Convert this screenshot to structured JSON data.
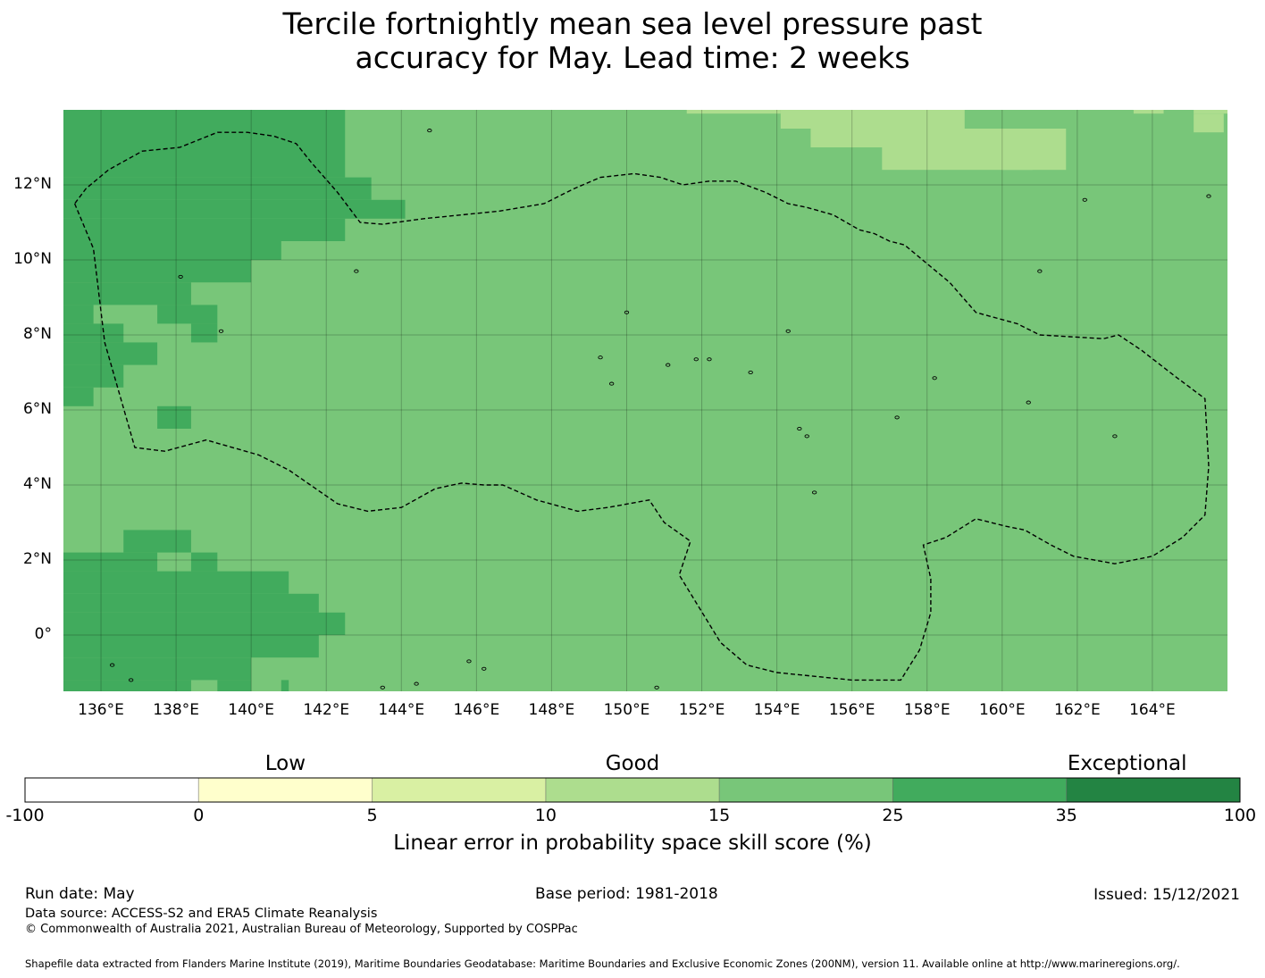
{
  "title_line1": "Tercile fortnightly mean sea level pressure past",
  "title_line2": "accuracy for May. Lead time: 2 weeks",
  "map": {
    "lon_range": [
      135.0,
      166.0
    ],
    "lat_range": [
      -1.5,
      14.0
    ],
    "x_ticks": [
      "136°E",
      "138°E",
      "140°E",
      "142°E",
      "144°E",
      "146°E",
      "148°E",
      "150°E",
      "152°E",
      "154°E",
      "156°E",
      "158°E",
      "160°E",
      "162°E",
      "164°E"
    ],
    "x_tick_values": [
      136,
      138,
      140,
      142,
      144,
      146,
      148,
      150,
      152,
      154,
      156,
      158,
      160,
      162,
      164
    ],
    "y_ticks": [
      "12°N",
      "10°N",
      "8°N",
      "6°N",
      "4°N",
      "2°N",
      "0°"
    ],
    "y_tick_values": [
      12,
      10,
      8,
      6,
      4,
      2,
      0
    ],
    "background_category": 4,
    "skill_patches": [
      {
        "category": 5,
        "lon": [
          135.0,
          142.5
        ],
        "lat": [
          13.0,
          14.0
        ]
      },
      {
        "category": 5,
        "lon": [
          135.0,
          142.5
        ],
        "lat": [
          12.2,
          13.0
        ]
      },
      {
        "category": 5,
        "lon": [
          135.0,
          143.2
        ],
        "lat": [
          11.6,
          12.2
        ]
      },
      {
        "category": 5,
        "lon": [
          135.0,
          143.2
        ],
        "lat": [
          11.6,
          11.6
        ]
      },
      {
        "category": 5,
        "lon": [
          135.0,
          144.1
        ],
        "lat": [
          11.1,
          11.6
        ]
      },
      {
        "category": 5,
        "lon": [
          135.0,
          142.5
        ],
        "lat": [
          10.5,
          11.1
        ]
      },
      {
        "category": 5,
        "lon": [
          135.0,
          140.8
        ],
        "lat": [
          10.0,
          10.5
        ]
      },
      {
        "category": 5,
        "lon": [
          135.0,
          140.0
        ],
        "lat": [
          9.4,
          10.0
        ]
      },
      {
        "category": 5,
        "lon": [
          135.0,
          138.4
        ],
        "lat": [
          8.8,
          9.4
        ]
      },
      {
        "category": 5,
        "lon": [
          135.0,
          135.8
        ],
        "lat": [
          8.3,
          8.8
        ]
      },
      {
        "category": 5,
        "lon": [
          137.5,
          139.1
        ],
        "lat": [
          8.3,
          8.8
        ]
      },
      {
        "category": 5,
        "lon": [
          138.4,
          139.1
        ],
        "lat": [
          7.8,
          8.3
        ]
      },
      {
        "category": 5,
        "lon": [
          135.0,
          136.6
        ],
        "lat": [
          7.8,
          8.3
        ]
      },
      {
        "category": 5,
        "lon": [
          135.0,
          137.5
        ],
        "lat": [
          7.2,
          7.8
        ]
      },
      {
        "category": 5,
        "lon": [
          135.0,
          136.6
        ],
        "lat": [
          6.6,
          7.2
        ]
      },
      {
        "category": 5,
        "lon": [
          135.0,
          135.8
        ],
        "lat": [
          6.1,
          6.6
        ]
      },
      {
        "category": 5,
        "lon": [
          137.5,
          138.4
        ],
        "lat": [
          5.5,
          6.1
        ]
      },
      {
        "category": 5,
        "lon": [
          136.6,
          138.4
        ],
        "lat": [
          2.2,
          2.8
        ]
      },
      {
        "category": 5,
        "lon": [
          135.0,
          137.5
        ],
        "lat": [
          1.7,
          2.2
        ]
      },
      {
        "category": 5,
        "lon": [
          138.4,
          139.1
        ],
        "lat": [
          1.7,
          2.2
        ]
      },
      {
        "category": 5,
        "lon": [
          135.0,
          141.0
        ],
        "lat": [
          1.1,
          1.7
        ]
      },
      {
        "category": 5,
        "lon": [
          135.0,
          141.8
        ],
        "lat": [
          0.6,
          1.1
        ]
      },
      {
        "category": 5,
        "lon": [
          135.0,
          142.5
        ],
        "lat": [
          0.0,
          0.6
        ]
      },
      {
        "category": 5,
        "lon": [
          135.0,
          141.8
        ],
        "lat": [
          -0.6,
          0.0
        ]
      },
      {
        "category": 5,
        "lon": [
          135.0,
          140.0
        ],
        "lat": [
          -1.2,
          -0.6
        ]
      },
      {
        "category": 5,
        "lon": [
          135.0,
          138.4
        ],
        "lat": [
          -1.5,
          -1.2
        ]
      },
      {
        "category": 5,
        "lon": [
          139.1,
          140.0
        ],
        "lat": [
          -1.5,
          -1.2
        ]
      },
      {
        "category": 5,
        "lon": [
          140.8,
          141.0
        ],
        "lat": [
          -1.5,
          -1.2
        ]
      },
      {
        "category": 3,
        "lon": [
          151.6,
          154.1
        ],
        "lat": [
          13.9,
          14.0
        ]
      },
      {
        "category": 3,
        "lon": [
          154.1,
          159.0
        ],
        "lat": [
          13.5,
          14.0
        ]
      },
      {
        "category": 3,
        "lon": [
          154.9,
          160.8
        ],
        "lat": [
          13.0,
          13.5
        ]
      },
      {
        "category": 3,
        "lon": [
          156.8,
          160.8
        ],
        "lat": [
          12.4,
          13.0
        ]
      },
      {
        "category": 3,
        "lon": [
          159.0,
          160.8
        ],
        "lat": [
          13.0,
          13.0
        ]
      },
      {
        "category": 3,
        "lon": [
          160.0,
          161.7
        ],
        "lat": [
          12.4,
          13.5
        ]
      },
      {
        "category": 3,
        "lon": [
          163.5,
          164.3
        ],
        "lat": [
          13.9,
          14.0
        ]
      },
      {
        "category": 3,
        "lon": [
          165.1,
          166.0
        ],
        "lat": [
          13.9,
          14.0
        ]
      },
      {
        "category": 3,
        "lon": [
          165.1,
          165.9
        ],
        "lat": [
          13.4,
          13.9
        ]
      }
    ],
    "eez_boundary": [
      [
        135.3,
        11.5
      ],
      [
        135.8,
        10.3
      ],
      [
        136.1,
        7.8
      ],
      [
        136.9,
        5.0
      ],
      [
        137.7,
        4.9
      ],
      [
        138.8,
        5.2
      ],
      [
        140.2,
        4.8
      ],
      [
        141.0,
        4.4
      ],
      [
        142.3,
        3.5
      ],
      [
        143.1,
        3.3
      ],
      [
        144.0,
        3.4
      ],
      [
        144.9,
        3.9
      ],
      [
        145.6,
        4.05
      ],
      [
        146.2,
        4.0
      ],
      [
        146.7,
        4.0
      ],
      [
        147.6,
        3.6
      ],
      [
        148.7,
        3.3
      ],
      [
        149.5,
        3.4
      ],
      [
        150.6,
        3.6
      ],
      [
        151.0,
        3.0
      ],
      [
        151.7,
        2.5
      ],
      [
        151.4,
        1.6
      ],
      [
        152.5,
        -0.2
      ],
      [
        153.2,
        -0.8
      ],
      [
        154.0,
        -1.0
      ],
      [
        156.0,
        -1.2
      ],
      [
        157.3,
        -1.2
      ],
      [
        157.8,
        -0.4
      ],
      [
        158.1,
        0.6
      ],
      [
        158.1,
        1.5
      ],
      [
        157.9,
        2.4
      ],
      [
        158.5,
        2.6
      ],
      [
        159.3,
        3.1
      ],
      [
        160.1,
        2.9
      ],
      [
        160.6,
        2.8
      ],
      [
        161.3,
        2.4
      ],
      [
        161.9,
        2.1
      ],
      [
        163.0,
        1.9
      ],
      [
        164.0,
        2.1
      ],
      [
        164.8,
        2.6
      ],
      [
        165.4,
        3.2
      ],
      [
        165.5,
        4.5
      ],
      [
        165.4,
        6.3
      ],
      [
        164.6,
        6.9
      ],
      [
        163.7,
        7.6
      ],
      [
        163.1,
        8.0
      ],
      [
        162.7,
        7.9
      ],
      [
        161.0,
        8.0
      ],
      [
        160.4,
        8.3
      ],
      [
        159.3,
        8.6
      ],
      [
        158.6,
        9.4
      ],
      [
        158.0,
        9.9
      ],
      [
        157.4,
        10.4
      ],
      [
        157.0,
        10.5
      ],
      [
        156.6,
        10.7
      ],
      [
        156.2,
        10.8
      ],
      [
        155.5,
        11.2
      ],
      [
        154.8,
        11.4
      ],
      [
        154.3,
        11.5
      ],
      [
        153.7,
        11.8
      ],
      [
        152.9,
        12.1
      ],
      [
        152.2,
        12.1
      ],
      [
        151.5,
        12.0
      ],
      [
        150.9,
        12.2
      ],
      [
        150.2,
        12.3
      ],
      [
        149.3,
        12.2
      ],
      [
        148.6,
        11.9
      ],
      [
        147.8,
        11.5
      ],
      [
        146.6,
        11.3
      ],
      [
        145.6,
        11.2
      ],
      [
        144.6,
        11.1
      ],
      [
        143.5,
        10.95
      ],
      [
        142.9,
        11.0
      ],
      [
        142.3,
        11.8
      ],
      [
        141.6,
        12.6
      ],
      [
        141.2,
        13.1
      ],
      [
        140.6,
        13.3
      ],
      [
        139.9,
        13.4
      ],
      [
        139.1,
        13.4
      ],
      [
        138.1,
        13.0
      ],
      [
        137.1,
        12.9
      ],
      [
        136.2,
        12.4
      ],
      [
        135.6,
        11.9
      ],
      [
        135.3,
        11.5
      ]
    ],
    "islands": [
      [
        144.75,
        13.45
      ],
      [
        138.12,
        9.55
      ],
      [
        139.2,
        8.1
      ],
      [
        142.8,
        9.7
      ],
      [
        149.3,
        7.4
      ],
      [
        149.6,
        6.7
      ],
      [
        151.85,
        7.35
      ],
      [
        152.2,
        7.35
      ],
      [
        153.3,
        7.0
      ],
      [
        151.1,
        7.2
      ],
      [
        154.8,
        5.3
      ],
      [
        154.6,
        5.5
      ],
      [
        158.2,
        6.85
      ],
      [
        157.2,
        5.8
      ],
      [
        160.7,
        6.2
      ],
      [
        163.0,
        5.3
      ],
      [
        155.0,
        3.8
      ],
      [
        154.3,
        8.1
      ],
      [
        161.0,
        9.7
      ],
      [
        162.2,
        11.6
      ],
      [
        165.5,
        11.7
      ],
      [
        150.8,
        -1.4
      ],
      [
        144.4,
        -1.3
      ],
      [
        143.5,
        -1.4
      ],
      [
        146.2,
        -0.9
      ],
      [
        145.8,
        -0.7
      ],
      [
        136.3,
        -0.8
      ],
      [
        136.8,
        -1.2
      ],
      [
        150.0,
        8.6
      ]
    ]
  },
  "colorbar": {
    "colors": [
      "#ffffff",
      "#ffffcc",
      "#d9f0a3",
      "#addd8e",
      "#78c679",
      "#41ab5d",
      "#238443"
    ],
    "boundaries": [
      "-100",
      "0",
      "5",
      "10",
      "15",
      "25",
      "35",
      "100"
    ],
    "categories": [
      "Low",
      "Good",
      "Exceptional"
    ],
    "label": "Linear error in probability space skill score (%)"
  },
  "footer": {
    "run_date": "Run date: May",
    "base_period": "Base period: 1981-2018",
    "issued": "Issued: 15/12/2021",
    "data_source": "Data source: ACCESS-S2 and ERA5 Climate Reanalysis",
    "copyright": "© Commonwealth of Australia 2021, Australian Bureau of Meteorology, Supported by COSPPac",
    "shapefile": "Shapefile data extracted from Flanders Marine Institute (2019), Maritime Boundaries Geodatabase: Maritime Boundaries and Exclusive Economic Zones (200NM), version 11. Available online at http://www.marineregions.org/."
  }
}
